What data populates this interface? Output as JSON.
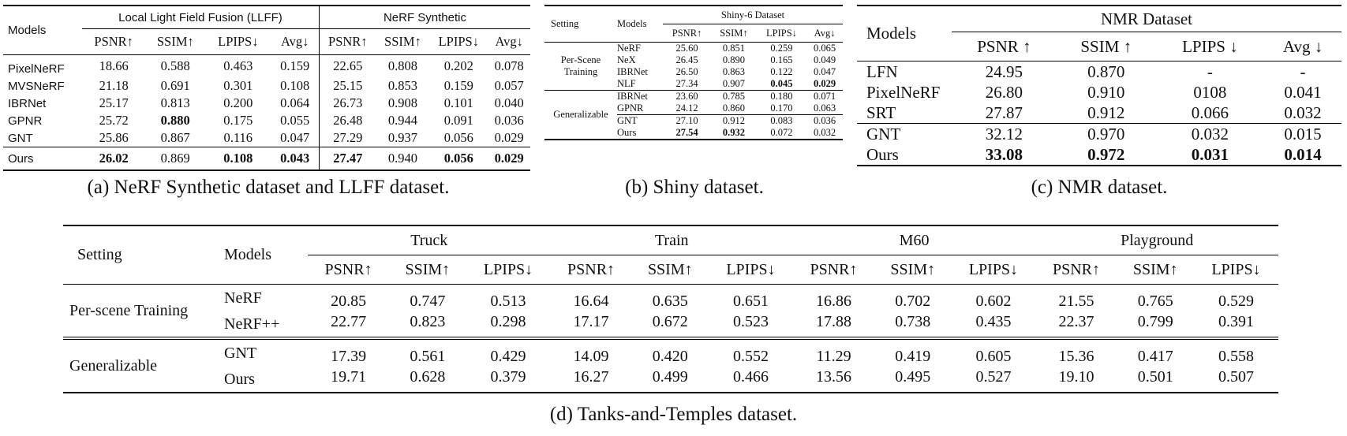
{
  "panel_a": {
    "header": {
      "models": "Models",
      "group1": "Local Light Field Fusion (LLFF)",
      "group2": "NeRF Synthetic"
    },
    "metrics": [
      "PSNR↑",
      "SSIM↑",
      "LPIPS↓",
      "Avg↓",
      "PSNR↑",
      "SSIM↑",
      "LPIPS↓",
      "Avg↓"
    ],
    "rows": [
      {
        "model": "PixelNeRF",
        "v": [
          "18.66",
          "0.588",
          "0.463",
          "0.159",
          "22.65",
          "0.808",
          "0.202",
          "0.078"
        ]
      },
      {
        "model": "MVSNeRF",
        "v": [
          "21.18",
          "0.691",
          "0.301",
          "0.108",
          "25.15",
          "0.853",
          "0.159",
          "0.057"
        ]
      },
      {
        "model": "IBRNet",
        "v": [
          "25.17",
          "0.813",
          "0.200",
          "0.064",
          "26.73",
          "0.908",
          "0.101",
          "0.040"
        ]
      },
      {
        "model": "GPNR",
        "v": [
          "25.72",
          "0.880",
          "0.175",
          "0.055",
          "26.48",
          "0.944",
          "0.091",
          "0.036"
        ]
      },
      {
        "model": "GNT",
        "v": [
          "25.86",
          "0.867",
          "0.116",
          "0.047",
          "27.29",
          "0.937",
          "0.056",
          "0.029"
        ]
      },
      {
        "model": "Ours",
        "v": [
          "26.02",
          "0.869",
          "0.108",
          "0.043",
          "27.47",
          "0.940",
          "0.056",
          "0.029"
        ]
      }
    ],
    "caption": "(a) NeRF Synthetic dataset and LLFF dataset."
  },
  "panel_b": {
    "header": {
      "setting": "Setting",
      "models": "Models",
      "group": "Shiny-6 Dataset"
    },
    "metrics": [
      "PSNR↑",
      "SSIM↑",
      "LPIPS↓",
      "Avg↓"
    ],
    "groups": [
      {
        "setting_line1": "Per-Scene",
        "setting_line2": "Training",
        "rows": [
          {
            "model": "NeRF",
            "v": [
              "25.60",
              "0.851",
              "0.259",
              "0.065"
            ]
          },
          {
            "model": "NeX",
            "v": [
              "26.45",
              "0.890",
              "0.165",
              "0.049"
            ]
          },
          {
            "model": "IBRNet",
            "v": [
              "26.50",
              "0.863",
              "0.122",
              "0.047"
            ]
          },
          {
            "model": "NLF",
            "v": [
              "27.34",
              "0.907",
              "0.045",
              "0.029"
            ]
          }
        ]
      },
      {
        "setting": "Generalizable",
        "rows": [
          {
            "model": "IBRNet",
            "v": [
              "23.60",
              "0.785",
              "0.180",
              "0.071"
            ]
          },
          {
            "model": "GPNR",
            "v": [
              "24.12",
              "0.860",
              "0.170",
              "0.063"
            ]
          },
          {
            "model": "GNT",
            "v": [
              "27.10",
              "0.912",
              "0.083",
              "0.036"
            ]
          },
          {
            "model": "Ours",
            "v": [
              "27.54",
              "0.932",
              "0.072",
              "0.032"
            ]
          }
        ]
      }
    ],
    "caption": "(b) Shiny dataset."
  },
  "panel_c": {
    "header": {
      "models": "Models",
      "group": "NMR Dataset"
    },
    "metrics": [
      "PSNR ↑",
      "SSIM ↑",
      "LPIPS ↓",
      "Avg ↓"
    ],
    "rows": [
      {
        "model": "LFN",
        "v": [
          "24.95",
          "0.870",
          "-",
          "-"
        ]
      },
      {
        "model": "PixelNeRF",
        "v": [
          "26.80",
          "0.910",
          "0108",
          "0.041"
        ]
      },
      {
        "model": "SRT",
        "v": [
          "27.87",
          "0.912",
          "0.066",
          "0.032"
        ]
      },
      {
        "model": "GNT",
        "v": [
          "32.12",
          "0.970",
          "0.032",
          "0.015"
        ]
      },
      {
        "model": "Ours",
        "v": [
          "33.08",
          "0.972",
          "0.031",
          "0.014"
        ]
      }
    ],
    "caption": "(c) NMR dataset."
  },
  "panel_d": {
    "header": {
      "setting": "Setting",
      "models": "Models",
      "scenes": [
        "Truck",
        "Train",
        "M60",
        "Playground"
      ]
    },
    "metrics": [
      "PSNR↑",
      "SSIM↑",
      "LPIPS↓",
      "PSNR↑",
      "SSIM↑",
      "LPIPS↓",
      "PSNR↑",
      "SSIM↑",
      "LPIPS↓",
      "PSNR↑",
      "SSIM↑",
      "LPIPS↓"
    ],
    "groups": [
      {
        "setting": "Per-scene Training",
        "rows": [
          {
            "model": "NeRF",
            "v": [
              "20.85",
              "0.747",
              "0.513",
              "16.64",
              "0.635",
              "0.651",
              "16.86",
              "0.702",
              "0.602",
              "21.55",
              "0.765",
              "0.529"
            ]
          },
          {
            "model": "NeRF++",
            "v": [
              "22.77",
              "0.823",
              "0.298",
              "17.17",
              "0.672",
              "0.523",
              "17.88",
              "0.738",
              "0.435",
              "22.37",
              "0.799",
              "0.391"
            ]
          }
        ]
      },
      {
        "setting": "Generalizable",
        "rows": [
          {
            "model": "GNT",
            "v": [
              "17.39",
              "0.561",
              "0.429",
              "14.09",
              "0.420",
              "0.552",
              "11.29",
              "0.419",
              "0.605",
              "15.36",
              "0.417",
              "0.558"
            ]
          },
          {
            "model": "Ours",
            "v": [
              "19.71",
              "0.628",
              "0.379",
              "16.27",
              "0.499",
              "0.466",
              "13.56",
              "0.495",
              "0.527",
              "19.10",
              "0.501",
              "0.507"
            ]
          }
        ]
      }
    ],
    "caption": "(d) Tanks-and-Temples dataset."
  }
}
